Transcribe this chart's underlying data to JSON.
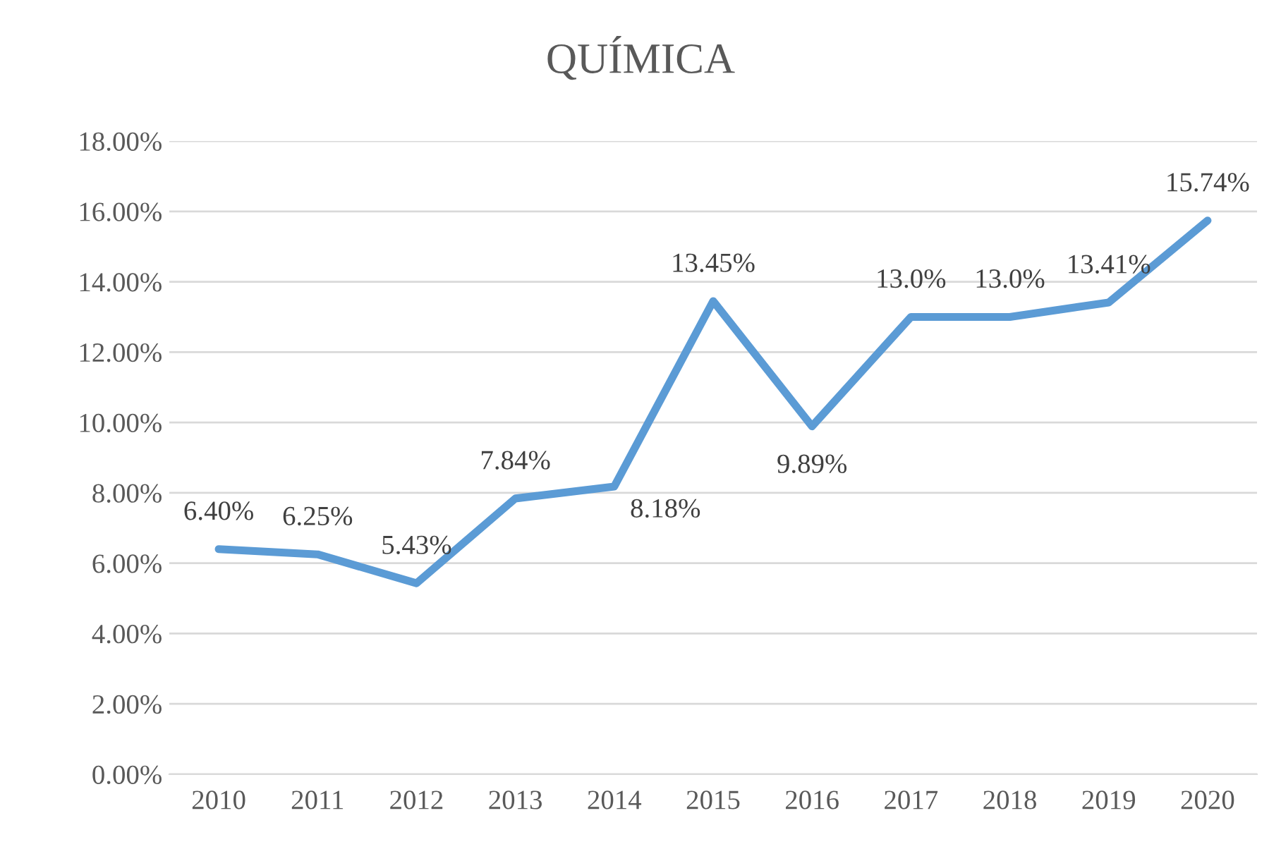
{
  "chart_data": {
    "type": "line",
    "title": "QUÍMICA",
    "categories": [
      "2010",
      "2011",
      "2012",
      "2013",
      "2014",
      "2015",
      "2016",
      "2017",
      "2018",
      "2019",
      "2020"
    ],
    "series": [
      {
        "color": "#5b9bd5",
        "values": [
          6.4,
          6.25,
          5.43,
          7.84,
          8.18,
          13.45,
          9.89,
          13.0,
          13.0,
          13.41,
          15.74
        ],
        "value_labels": [
          "6.40%",
          "6.25%",
          "5.43%",
          "7.84%",
          "8.18%",
          "13.45%",
          "9.89%",
          "13.0%",
          "13.0%",
          "13.41%",
          "15.74%"
        ]
      }
    ],
    "ylim": [
      0,
      18
    ],
    "yticks": [
      {
        "value": 0,
        "label": "0.00%"
      },
      {
        "value": 2,
        "label": "2.00%"
      },
      {
        "value": 4,
        "label": "4.00%"
      },
      {
        "value": 6,
        "label": "6.00%"
      },
      {
        "value": 8,
        "label": "8.00%"
      },
      {
        "value": 10,
        "label": "10.00%"
      },
      {
        "value": 12,
        "label": "12.00%"
      },
      {
        "value": 14,
        "label": "14.00%"
      },
      {
        "value": 16,
        "label": "16.00%"
      },
      {
        "value": 18,
        "label": "18.00%"
      }
    ],
    "grid": "y",
    "marker": "none",
    "line_style": "solid"
  }
}
